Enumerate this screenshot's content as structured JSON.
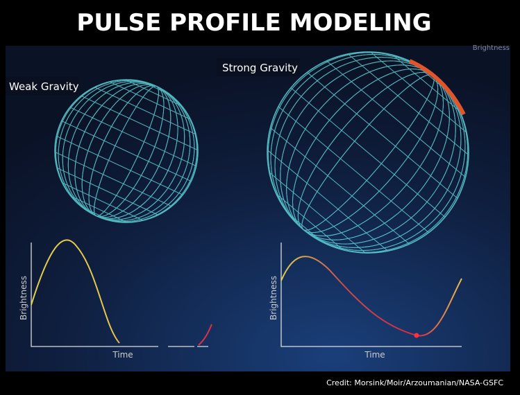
{
  "header": {
    "title": "PULSE PROFILE MODELING"
  },
  "panels": [
    {
      "label": "Weak Gravity",
      "plot": {
        "y_label": "Brightness",
        "x_label": "Time"
      }
    },
    {
      "label": "Strong Gravity",
      "plot": {
        "y_label": "Brightness",
        "x_label": "Time"
      }
    }
  ],
  "corner_label": "Brightness",
  "credit": "Credit: Morsink/Moir/Arzoumanian/NASA-GSFC"
}
